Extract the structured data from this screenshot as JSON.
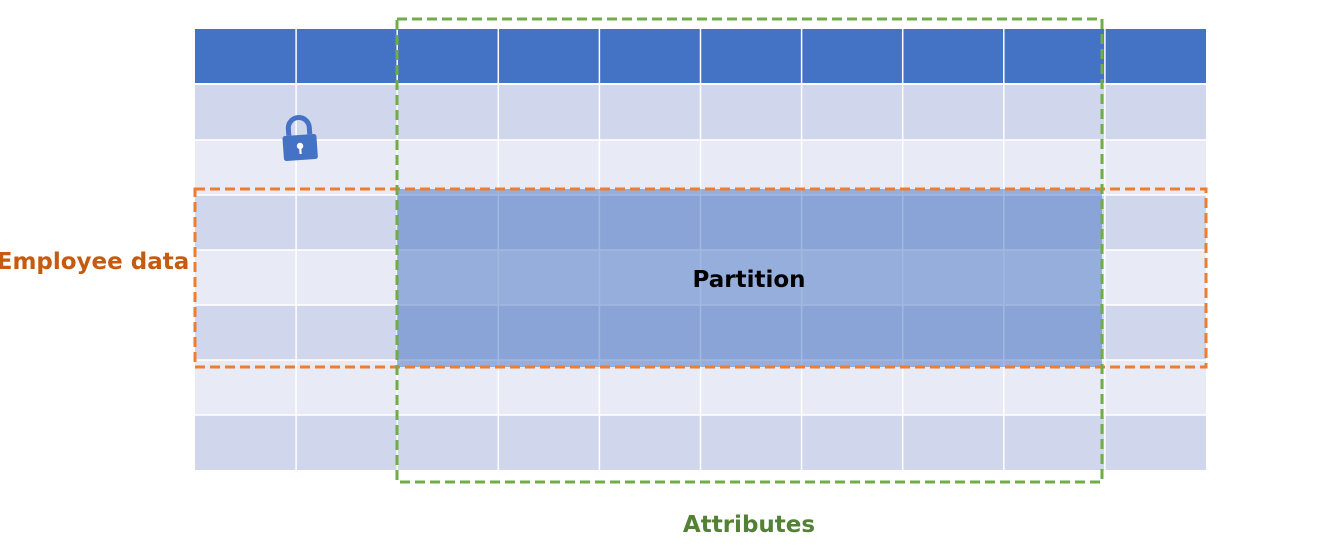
{
  "diagram": {
    "table": {
      "columns": 10,
      "body_rows": 7,
      "header_color": "#4472C4",
      "row_color_dark": "#D0D6EC",
      "row_color_light": "#E8EBF5",
      "divider_color": "#FFFFFF"
    },
    "partition": {
      "label": "Partition",
      "fill_color": "#4472C4",
      "fill_opacity": 0.5
    },
    "row_group": {
      "label": "Employee data",
      "color": "#C55A11",
      "border_color": "#ED7D31"
    },
    "column_group": {
      "label": "Attributes",
      "color": "#538135",
      "border_color": "#70AD47"
    },
    "lock_icon": {
      "icon": "lock-icon",
      "color": "#4472C4"
    }
  }
}
